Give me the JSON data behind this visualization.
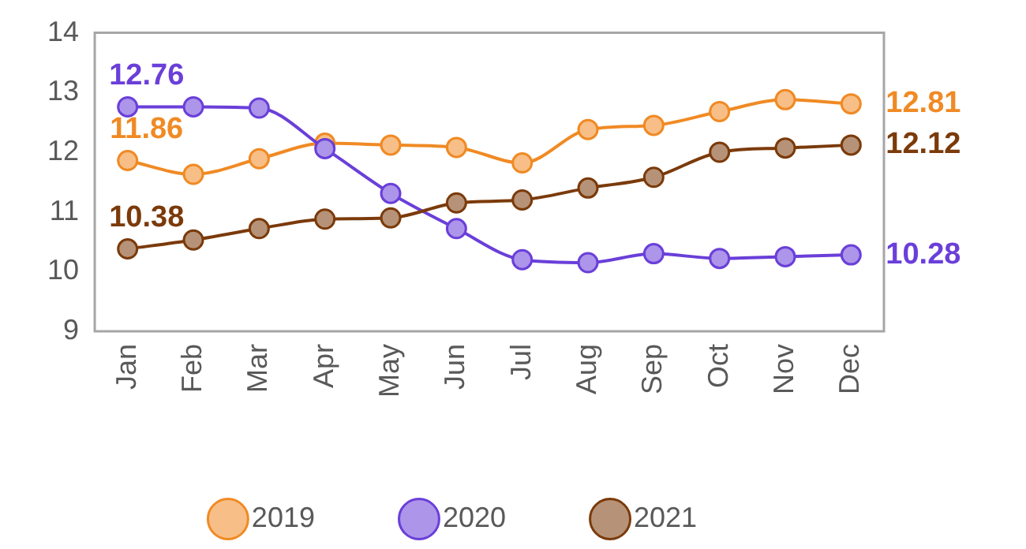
{
  "chart_data": {
    "type": "line",
    "categories": [
      "Jan",
      "Feb",
      "Mar",
      "Apr",
      "May",
      "Jun",
      "Jul",
      "Aug",
      "Sep",
      "Oct",
      "Nov",
      "Dec"
    ],
    "series": [
      {
        "name": "2019",
        "color": "#f08a24",
        "values": [
          11.86,
          11.63,
          11.89,
          12.15,
          12.12,
          12.08,
          11.82,
          12.38,
          12.45,
          12.68,
          12.88,
          12.81
        ],
        "value_labels": [
          "11.86",
          null,
          null,
          null,
          null,
          null,
          null,
          null,
          null,
          null,
          null,
          "12.81"
        ]
      },
      {
        "name": "2020",
        "color": "#6a3fd9",
        "values": [
          12.76,
          12.76,
          12.74,
          12.06,
          11.31,
          10.72,
          10.2,
          10.15,
          10.3,
          10.22,
          10.25,
          10.28
        ],
        "value_labels": [
          "12.76",
          null,
          null,
          null,
          null,
          null,
          null,
          null,
          null,
          null,
          null,
          "10.28"
        ]
      },
      {
        "name": "2021",
        "color": "#7b3a0a",
        "values": [
          10.38,
          10.53,
          10.72,
          10.88,
          10.9,
          11.15,
          11.2,
          11.4,
          11.58,
          12.0,
          12.07,
          12.12
        ],
        "value_labels": [
          "10.38",
          null,
          null,
          null,
          null,
          null,
          null,
          null,
          null,
          null,
          null,
          "12.12"
        ]
      }
    ],
    "ylim": [
      9,
      14
    ],
    "yticks": [
      9,
      10,
      11,
      12,
      13,
      14
    ],
    "grid": false,
    "legend": "bottom",
    "marker": "circle",
    "line_style": "solid"
  }
}
